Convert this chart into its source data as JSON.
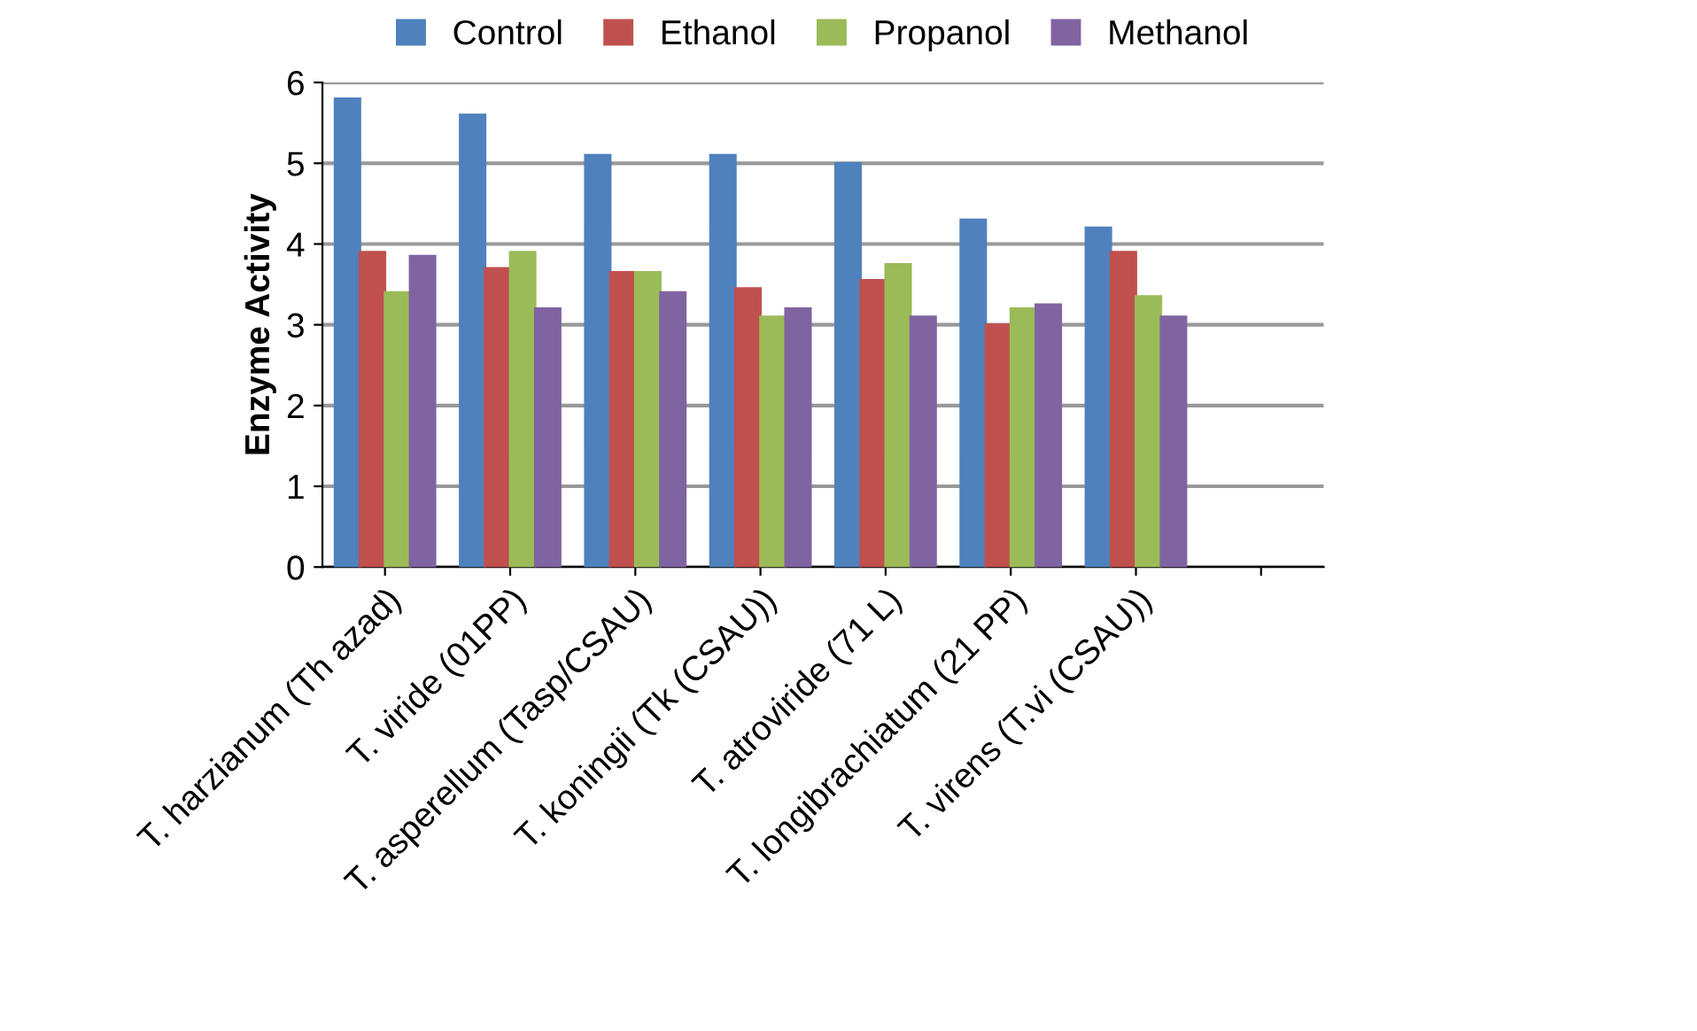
{
  "chart_data": {
    "type": "bar",
    "ylabel": "Enzyme Activity",
    "categories": [
      "T. harzianum (Th azad)",
      "T. viride (01PP)",
      "T. asperellum (Tasp/CSAU)",
      "T. koningii (Tk (CSAU))",
      "T. atroviride (71 L)",
      "T. longibrachiatum (21 PP)",
      "T. virens (T.vi (CSAU))",
      null
    ],
    "series": [
      {
        "name": "Control",
        "color": "#4f81bd",
        "values": [
          5.8,
          5.6,
          5.1,
          5.1,
          5.0,
          4.3,
          4.2,
          null
        ]
      },
      {
        "name": "Ethanol",
        "color": "#c0504d",
        "values": [
          3.9,
          3.7,
          3.65,
          3.45,
          3.55,
          3.0,
          3.9,
          null
        ]
      },
      {
        "name": "Propanol",
        "color": "#9bbb59",
        "values": [
          3.4,
          3.9,
          3.65,
          3.1,
          3.75,
          3.2,
          3.35,
          null
        ]
      },
      {
        "name": "Methanol",
        "color": "#8064a2",
        "values": [
          3.85,
          3.2,
          3.4,
          3.2,
          3.1,
          3.25,
          3.1,
          null
        ]
      }
    ],
    "ylim": [
      0,
      6
    ],
    "yticks": [
      0,
      1,
      2,
      3,
      4,
      5,
      6
    ],
    "grid": "y",
    "legend": "top"
  }
}
